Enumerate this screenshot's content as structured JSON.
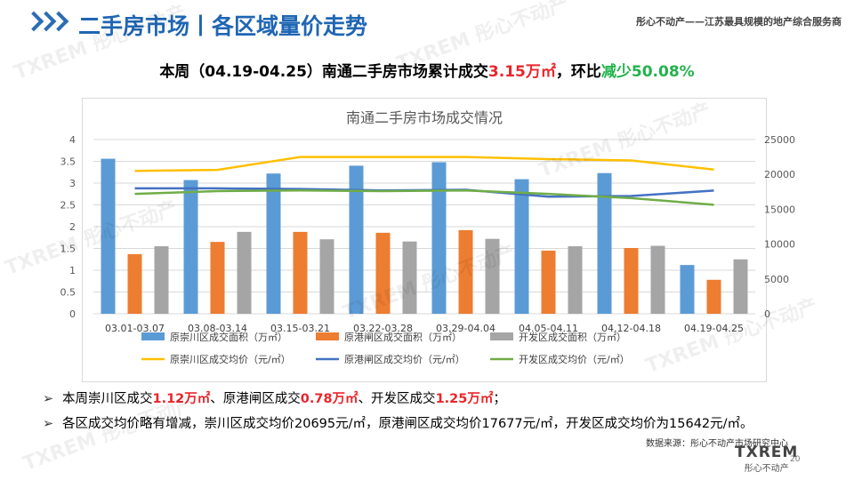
{
  "header": {
    "title": "二手房市场丨各区域量价走势",
    "tagline": "彤心不动产——江苏最具规模的地产综合服务商"
  },
  "headline": {
    "prefix": "本周（04.19-04.25）南通二手房市场累计成交",
    "volume": "3.15万㎡",
    "mid": "，环比",
    "change": "减少50.08%"
  },
  "chart_data": {
    "type": "bar",
    "title": "南通二手房市场成交情况",
    "categories": [
      "03.01-03.07",
      "03.08-03.14",
      "03.15-03.21",
      "03.22-03.28",
      "03.29-04.04",
      "04.05-04.11",
      "04.12-04.18",
      "04.19-04.25"
    ],
    "series": [
      {
        "name": "原崇川区成交面积（万㎡）",
        "type": "bar",
        "axis": "left",
        "color": "#5b9bd5",
        "values": [
          3.56,
          3.07,
          3.22,
          3.4,
          3.48,
          3.09,
          3.23,
          1.12
        ]
      },
      {
        "name": "原港闸区成交面积（万㎡）",
        "type": "bar",
        "axis": "left",
        "color": "#ed7d31",
        "values": [
          1.37,
          1.65,
          1.88,
          1.86,
          1.92,
          1.45,
          1.51,
          0.78
        ]
      },
      {
        "name": "开发区成交面积（万㎡）",
        "type": "bar",
        "axis": "left",
        "color": "#a5a5a5",
        "values": [
          1.55,
          1.88,
          1.71,
          1.66,
          1.72,
          1.55,
          1.56,
          1.25
        ]
      },
      {
        "name": "原崇川区成交均价（元/㎡）",
        "type": "line",
        "axis": "right",
        "color": "#ffc000",
        "values": [
          20500,
          20650,
          22500,
          22500,
          22500,
          22200,
          22000,
          20695
        ]
      },
      {
        "name": "原港闸区成交均价（元/㎡）",
        "type": "line",
        "axis": "right",
        "color": "#4472c4",
        "values": [
          18000,
          18000,
          17900,
          17700,
          17800,
          16800,
          16900,
          17677
        ]
      },
      {
        "name": "开发区成交均价（元/㎡）",
        "type": "line",
        "axis": "right",
        "color": "#70ad47",
        "values": [
          17200,
          17600,
          17700,
          17600,
          17700,
          17200,
          16600,
          15642
        ]
      }
    ],
    "yleft_ticks": [
      "0",
      "0.5",
      "1",
      "1.5",
      "2",
      "2.5",
      "3",
      "3.5",
      "4"
    ],
    "yright_ticks": [
      "0",
      "5000",
      "10000",
      "15000",
      "20000",
      "25000"
    ],
    "ylim_left": [
      0,
      4
    ],
    "ylim_right": [
      0,
      25000
    ],
    "legend_position": "bottom",
    "grid": true
  },
  "bullets": [
    {
      "parts": [
        "本周崇川区成交",
        "1.12万㎡",
        "、原港闸区成交",
        "0.78万㎡",
        "、开发区成交",
        "1.25万㎡",
        "；"
      ]
    },
    {
      "parts": [
        "各区成交均价略有增减，崇川区成交均价20695元/㎡，原港闸区成交均价17677元/㎡，开发区成交均价为15642元/㎡。"
      ]
    }
  ],
  "footer": {
    "source": "数据来源：彤心不动产市场研究中心",
    "brand": "TXREM",
    "brand_cn": "彤心不动产",
    "page": "20"
  },
  "watermark": "TXREM 彤心不动产"
}
